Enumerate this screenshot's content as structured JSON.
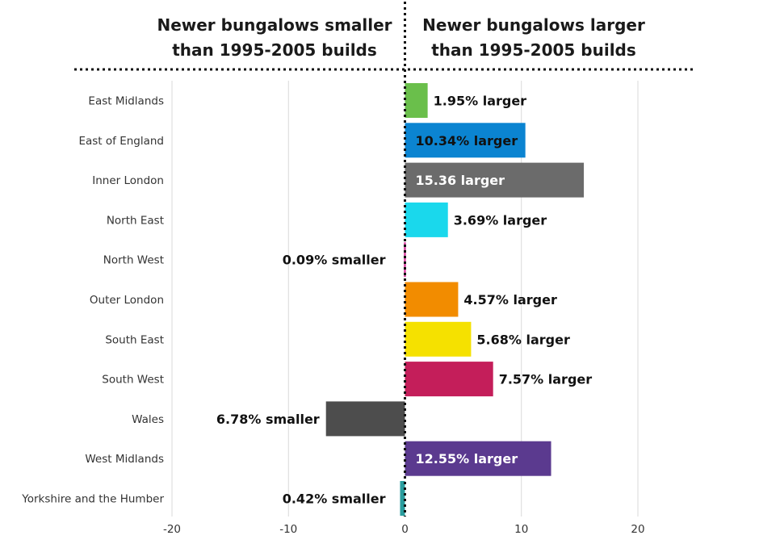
{
  "headers": {
    "left": "Newer bungalows smaller than 1995-2005 builds",
    "right": "Newer bungalows larger than 1995-2005 builds"
  },
  "chart_data": {
    "type": "bar",
    "orientation": "horizontal",
    "categories": [
      "East Midlands",
      "East of England",
      "Inner London",
      "North East",
      "North West",
      "Outer London",
      "South East",
      "South West",
      "Wales",
      "West Midlands",
      "Yorkshire and the Humber"
    ],
    "values": [
      1.95,
      10.34,
      15.36,
      3.69,
      -0.09,
      4.57,
      5.68,
      7.57,
      -6.78,
      12.55,
      -0.42
    ],
    "data_labels": [
      "1.95% larger",
      "10.34% larger",
      "15.36 larger",
      "3.69% larger",
      "0.09% smaller",
      "4.57% larger",
      "5.68% larger",
      "7.57% larger",
      "6.78% smaller",
      "12.55% larger",
      "0.42% smaller"
    ],
    "colors": [
      "#6abf4b",
      "#0b84d1",
      "#6b6b6b",
      "#1ad8ec",
      "#d6409f",
      "#f28c00",
      "#f5e100",
      "#c41e5a",
      "#4d4d4d",
      "#5b3a8f",
      "#2a9d9e"
    ],
    "label_inside": [
      false,
      true,
      true,
      false,
      false,
      false,
      false,
      false,
      false,
      true,
      false
    ],
    "label_colors": [
      "#111111",
      "#111111",
      "#ffffff",
      "#111111",
      "#111111",
      "#111111",
      "#111111",
      "#111111",
      "#111111",
      "#ffffff",
      "#111111"
    ],
    "xlim": [
      -20,
      20
    ],
    "xticks": [
      -20,
      -10,
      0,
      10,
      20
    ],
    "grid": true,
    "zero_line": "dotted"
  }
}
